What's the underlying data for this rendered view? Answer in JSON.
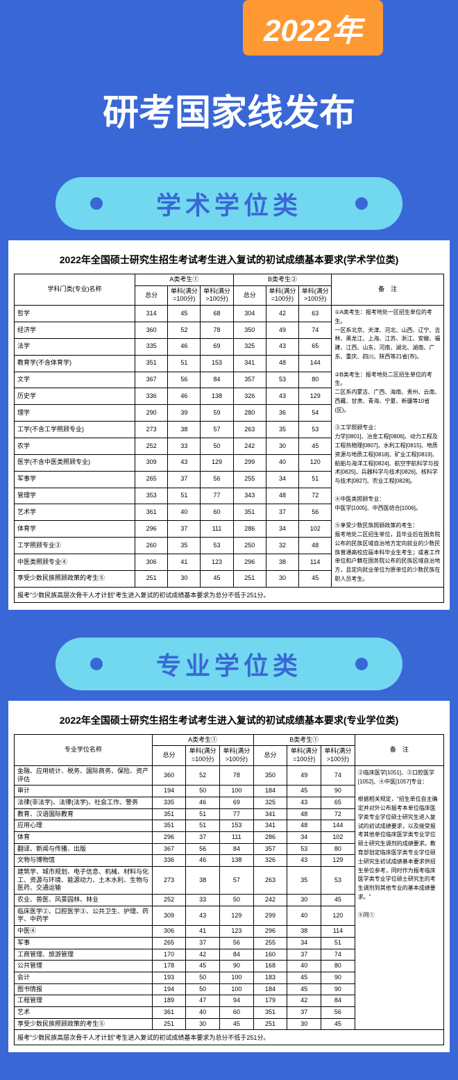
{
  "year_banner": "2022年",
  "main_title": "研考国家线发布",
  "section1": {
    "label": "学术学位类",
    "table_title": "2022年全国硕士研究生招生考试考生进入复试的初试成绩基本要求(学术学位类)",
    "header": {
      "name": "学科门类(专业)名称",
      "groupA": "A类考生①",
      "groupB": "B类考生②",
      "total": "总分",
      "sub100": "单科(满分=100分)",
      "sub_over100": "单科(满分>100分)",
      "notes": "备　注"
    },
    "rows": [
      {
        "name": "哲学",
        "a": [
          314,
          45,
          68
        ],
        "b": [
          304,
          42,
          63
        ]
      },
      {
        "name": "经济学",
        "a": [
          360,
          52,
          78
        ],
        "b": [
          350,
          49,
          74
        ]
      },
      {
        "name": "法学",
        "a": [
          335,
          46,
          69
        ],
        "b": [
          325,
          43,
          65
        ]
      },
      {
        "name": "教育学(不含体育学)",
        "a": [
          351,
          51,
          153
        ],
        "b": [
          341,
          48,
          144
        ]
      },
      {
        "name": "文学",
        "a": [
          367,
          56,
          84
        ],
        "b": [
          357,
          53,
          80
        ]
      },
      {
        "name": "历史学",
        "a": [
          336,
          46,
          138
        ],
        "b": [
          326,
          43,
          129
        ]
      },
      {
        "name": "理学",
        "a": [
          290,
          39,
          59
        ],
        "b": [
          280,
          36,
          54
        ]
      },
      {
        "name": "工学(不含工学照顾专业)",
        "a": [
          273,
          38,
          57
        ],
        "b": [
          263,
          35,
          53
        ]
      },
      {
        "name": "农学",
        "a": [
          252,
          33,
          50
        ],
        "b": [
          242,
          30,
          45
        ]
      },
      {
        "name": "医学(不含中医类照顾专业)",
        "a": [
          309,
          43,
          129
        ],
        "b": [
          299,
          40,
          120
        ]
      },
      {
        "name": "军事学",
        "a": [
          265,
          37,
          56
        ],
        "b": [
          255,
          34,
          51
        ]
      },
      {
        "name": "管理学",
        "a": [
          353,
          51,
          77
        ],
        "b": [
          343,
          48,
          72
        ]
      },
      {
        "name": "艺术学",
        "a": [
          361,
          40,
          60
        ],
        "b": [
          351,
          37,
          56
        ]
      },
      {
        "name": "体育学",
        "a": [
          296,
          37,
          111
        ],
        "b": [
          286,
          34,
          102
        ]
      },
      {
        "name": "工学照顾专业③",
        "a": [
          260,
          35,
          53
        ],
        "b": [
          250,
          32,
          48
        ]
      },
      {
        "name": "中医类照顾专业④",
        "a": [
          306,
          41,
          123
        ],
        "b": [
          296,
          38,
          114
        ]
      },
      {
        "name": "享受少数民族照顾政策的考生⑤",
        "a": [
          251,
          30,
          45
        ],
        "b": [
          251,
          30,
          45
        ]
      }
    ],
    "footer": "报考\"少数民族高层次骨干人才计划\"考生进入复试的初试成绩基本要求为总分不低于251分。",
    "notes_text": "①A类考生：报考地处一区招生单位的考生。\n一区系北京、天津、河北、山西、辽宁、吉林、黑龙江、上海、江苏、浙江、安徽、福建、江西、山东、河南、湖北、湖南、广东、重庆、四川、陕西等21省(市)。\n\n②B类考生：报考地处二区招生单位的考生。\n二区系内蒙古、广西、海南、贵州、云南、西藏、甘肃、青海、宁夏、新疆等10省(区)。\n\n③工学照顾专业：\n力学[0801]、冶金工程[0806]、动力工程及工程热物理[0807]、水利工程[0815]、地质资源与地质工程[0818]、矿业工程[0819]、船舶与海洋工程[0824]、航空宇航科学与技术[0825]、兵器科学与技术[0826]、核科学与技术[0827]、农业工程[0828]。\n\n④中医类照顾专业：\n中医学[1005]、中西医结合[1006]。\n\n⑤享受少数民族照顾政策的考生：\n报考地处二区招生单位，且毕业后在国务院公布的民族区域自治地方定向就业的少数民族普通高校应届本科毕业生考生；或者工作单位和户籍在国务院公布的民族区域自治地方，且定向就业单位为原单位的少数民族在职人员考生。"
  },
  "section2": {
    "label": "专业学位类",
    "table_title": "2022年全国硕士研究生招生考试考生进入复试的初试成绩基本要求(专业学位类)",
    "header": {
      "name": "专业学位名称",
      "groupA": "A类考生①",
      "groupB": "B类考生①",
      "total": "总分",
      "sub100": "单科(满分=100分)",
      "sub_over100": "单科(满分>100分)",
      "notes": "备　注"
    },
    "rows": [
      {
        "name": "金融、应用统计、税务、国际商务、保险、资产评估",
        "a": [
          360,
          52,
          78
        ],
        "b": [
          350,
          49,
          74
        ]
      },
      {
        "name": "审计",
        "a": [
          194,
          50,
          100
        ],
        "b": [
          184,
          45,
          90
        ]
      },
      {
        "name": "法律(非法学)、法律(法学)、社会工作、警务",
        "a": [
          335,
          46,
          69
        ],
        "b": [
          325,
          43,
          65
        ]
      },
      {
        "name": "教育、汉语国际教育",
        "a": [
          351,
          51,
          77
        ],
        "b": [
          341,
          48,
          72
        ]
      },
      {
        "name": "应用心理",
        "a": [
          351,
          51,
          153
        ],
        "b": [
          341,
          48,
          144
        ]
      },
      {
        "name": "体育",
        "a": [
          296,
          37,
          111
        ],
        "b": [
          286,
          34,
          102
        ]
      },
      {
        "name": "翻译、新闻与传播、出版",
        "a": [
          367,
          56,
          84
        ],
        "b": [
          357,
          53,
          80
        ]
      },
      {
        "name": "文物与博物馆",
        "a": [
          336,
          46,
          138
        ],
        "b": [
          326,
          43,
          129
        ]
      },
      {
        "name": "建筑学、城市规划、电子信息、机械、材料与化工、资源与环境、能源动力、土木水利、生物与医药、交通运输",
        "a": [
          273,
          38,
          57
        ],
        "b": [
          263,
          35,
          53
        ]
      },
      {
        "name": "农业、兽医、风景园林、林业",
        "a": [
          252,
          33,
          50
        ],
        "b": [
          242,
          30,
          45
        ]
      },
      {
        "name": "临床医学②、口腔医学③、公共卫生、护理、药学、中药学",
        "a": [
          309,
          43,
          129
        ],
        "b": [
          299,
          40,
          120
        ]
      },
      {
        "name": "中医④",
        "a": [
          306,
          41,
          123
        ],
        "b": [
          296,
          38,
          114
        ]
      },
      {
        "name": "军事",
        "a": [
          265,
          37,
          56
        ],
        "b": [
          255,
          34,
          51
        ]
      },
      {
        "name": "工商管理、旅游管理",
        "a": [
          170,
          42,
          84
        ],
        "b": [
          160,
          37,
          74
        ]
      },
      {
        "name": "公共管理",
        "a": [
          178,
          45,
          90
        ],
        "b": [
          168,
          40,
          80
        ]
      },
      {
        "name": "会计",
        "a": [
          193,
          50,
          100
        ],
        "b": [
          183,
          45,
          90
        ]
      },
      {
        "name": "图书情报",
        "a": [
          194,
          50,
          100
        ],
        "b": [
          184,
          45,
          90
        ]
      },
      {
        "name": "工程管理",
        "a": [
          189,
          47,
          94
        ],
        "b": [
          179,
          42,
          84
        ]
      },
      {
        "name": "艺术",
        "a": [
          361,
          40,
          60
        ],
        "b": [
          351,
          37,
          56
        ]
      },
      {
        "name": "享受少数民族照顾政策的考生⑤",
        "a": [
          251,
          30,
          45
        ],
        "b": [
          251,
          30,
          45
        ]
      }
    ],
    "footer": "报考\"少数民族高层次骨干人才计划\"考生进入复试的初试成绩基本要求为总分不低于251分。",
    "notes_text": "②临床医学[1051]、③口腔医学[1052]、④中医[1057]专业：\n\n根据相关规定，\"招生单位自主确定并对外公布报考本单位临床医学类专业学位硕士研究生进入复试的初试成绩要求，以及接受报考其他单位临床医学类专业学位硕士研究生调剂的成绩要求。教育部划定临床医学类专业学位硕士研究生初试成绩基本要求供招生单位参考，同时作为报考临床医学类专业学位硕士研究生的考生调剂到其他专业的基本成绩要求。\"\n\n⑤同①"
  }
}
